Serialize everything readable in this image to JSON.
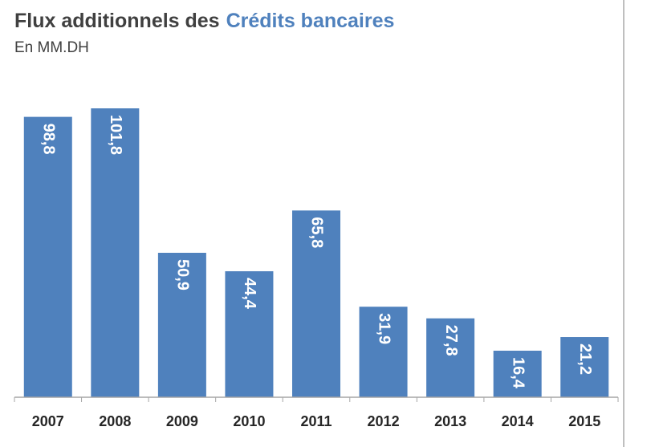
{
  "chart_data": {
    "type": "bar",
    "title": "Flux additionnels des",
    "title_highlight": "Crédits bancaires",
    "subtitle": "En MM.DH",
    "categories": [
      "2007",
      "2008",
      "2009",
      "2010",
      "2011",
      "2012",
      "2013",
      "2014",
      "2015"
    ],
    "values": [
      98.8,
      101.8,
      50.9,
      44.4,
      65.8,
      31.9,
      27.8,
      16.4,
      21.2
    ],
    "value_labels": [
      "98,8",
      "101,8",
      "50,9",
      "44,4",
      "65,8",
      "31,9",
      "27,8",
      "16,4",
      "21,2"
    ],
    "color": "#4f81bd",
    "ylim": [
      0,
      110
    ]
  }
}
